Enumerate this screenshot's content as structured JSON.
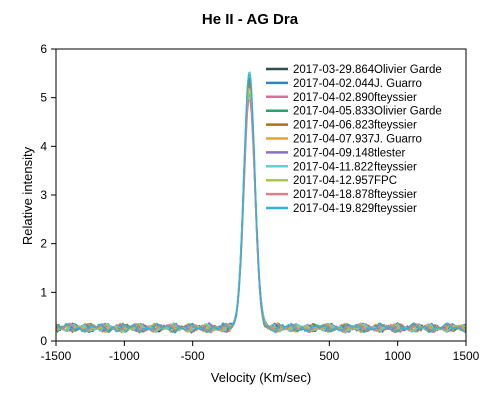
{
  "chart_data": {
    "type": "line",
    "title": "He II - AG Dra",
    "xlabel": "Velocity (Km/sec)",
    "ylabel": "Relative intensity",
    "xlim": [
      -1500,
      1500
    ],
    "ylim": [
      0,
      6
    ],
    "xticks": [
      -1500,
      -1000,
      -500,
      500,
      1000,
      1500
    ],
    "xtick_labels": [
      "-1500",
      "-1000",
      "-500",
      "500",
      "1000",
      "1500"
    ],
    "yticks": [
      0,
      1,
      2,
      3,
      4,
      5,
      6
    ],
    "ytick_labels": [
      "0",
      "1",
      "2",
      "3",
      "4",
      "5",
      "6"
    ],
    "grid": false,
    "legend_position": "top-right",
    "baseline_intensity": 0.27,
    "peak_center_velocity": -85,
    "series": [
      {
        "name": "2017-03-29.864",
        "observer": "Olivier Garde",
        "color": "#2f4f4f",
        "peak": 5.45
      },
      {
        "name": "2017-04-02.044",
        "observer": "J. Guarro",
        "color": "#2e86c1",
        "peak": 5.35
      },
      {
        "name": "2017-04-02.890",
        "observer": "fteyssier",
        "color": "#d8709a",
        "peak": 5.25
      },
      {
        "name": "2017-04-05.833",
        "observer": "Olivier Garde",
        "color": "#27a36e",
        "peak": 5.4
      },
      {
        "name": "2017-04-06.823",
        "observer": "fteyssier",
        "color": "#a8731c",
        "peak": 5.3
      },
      {
        "name": "2017-04-07.937",
        "observer": "J. Guarro",
        "color": "#e3a52a",
        "peak": 5.2
      },
      {
        "name": "2017-04-09.148",
        "observer": "tlester",
        "color": "#8b6fc6",
        "peak": 5.1
      },
      {
        "name": "2017-04-11.822",
        "observer": "fteyssier",
        "color": "#5fcfd9",
        "peak": 5.6
      },
      {
        "name": "2017-04-12.957",
        "observer": "FPC",
        "color": "#a8c64a",
        "peak": 5.15
      },
      {
        "name": "2017-04-18.878",
        "observer": "fteyssier",
        "color": "#d9808a",
        "peak": 5.0
      },
      {
        "name": "2017-04-19.829",
        "observer": "fteyssier",
        "color": "#2fb3d9",
        "peak": 5.5
      }
    ]
  }
}
